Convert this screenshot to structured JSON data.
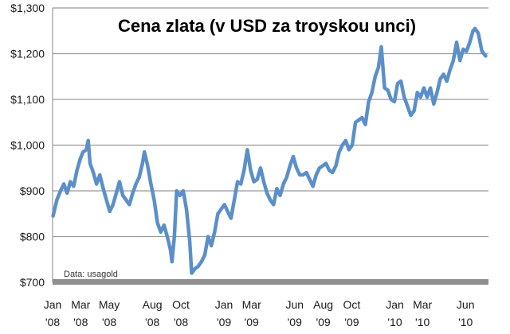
{
  "chart_data": {
    "type": "line",
    "title": "Cena zlata (v USD za troyskou unci)",
    "note": "Data: usagold",
    "xlabel": "",
    "ylabel": "",
    "ylim": [
      700,
      1300
    ],
    "xlim": [
      "2008-01-01",
      "2010-07-20"
    ],
    "yticks": [
      700,
      800,
      900,
      1000,
      1100,
      1200,
      1300
    ],
    "ytick_labels": [
      "$700",
      "$800",
      "$900",
      "$1,000",
      "$1,100",
      "$1,200",
      "$1,300"
    ],
    "xticks": [
      {
        "date": "2008-01-01",
        "line1": "Jan",
        "line2": "'08"
      },
      {
        "date": "2008-03-01",
        "line1": "Mar",
        "line2": "'08"
      },
      {
        "date": "2008-05-01",
        "line1": "May",
        "line2": "'08"
      },
      {
        "date": "2008-08-01",
        "line1": "Aug",
        "line2": "'08"
      },
      {
        "date": "2008-10-01",
        "line1": "Oct",
        "line2": "'08"
      },
      {
        "date": "2009-01-01",
        "line1": "Jan",
        "line2": "'09"
      },
      {
        "date": "2009-03-01",
        "line1": "Mar",
        "line2": "'09"
      },
      {
        "date": "2009-06-01",
        "line1": "Jun",
        "line2": "'09"
      },
      {
        "date": "2009-08-01",
        "line1": "Aug",
        "line2": "'09"
      },
      {
        "date": "2009-10-01",
        "line1": "Oct",
        "line2": "'09"
      },
      {
        "date": "2010-01-01",
        "line1": "Jan",
        "line2": "'10"
      },
      {
        "date": "2010-03-01",
        "line1": "Mar",
        "line2": "'10"
      },
      {
        "date": "2010-06-01",
        "line1": "Jun",
        "line2": "'10"
      }
    ],
    "grid": true,
    "series": [
      {
        "color": "#5b8fc9",
        "points": [
          [
            "2008-01-02",
            845
          ],
          [
            "2008-01-10",
            880
          ],
          [
            "2008-01-18",
            900
          ],
          [
            "2008-01-25",
            915
          ],
          [
            "2008-02-01",
            895
          ],
          [
            "2008-02-08",
            920
          ],
          [
            "2008-02-15",
            910
          ],
          [
            "2008-02-22",
            945
          ],
          [
            "2008-02-29",
            970
          ],
          [
            "2008-03-06",
            985
          ],
          [
            "2008-03-13",
            990
          ],
          [
            "2008-03-17",
            1010
          ],
          [
            "2008-03-21",
            960
          ],
          [
            "2008-03-28",
            940
          ],
          [
            "2008-04-04",
            915
          ],
          [
            "2008-04-11",
            935
          ],
          [
            "2008-04-18",
            905
          ],
          [
            "2008-04-25",
            880
          ],
          [
            "2008-05-02",
            855
          ],
          [
            "2008-05-09",
            870
          ],
          [
            "2008-05-16",
            895
          ],
          [
            "2008-05-23",
            920
          ],
          [
            "2008-05-30",
            890
          ],
          [
            "2008-06-06",
            880
          ],
          [
            "2008-06-13",
            870
          ],
          [
            "2008-06-20",
            895
          ],
          [
            "2008-06-27",
            915
          ],
          [
            "2008-07-04",
            930
          ],
          [
            "2008-07-11",
            960
          ],
          [
            "2008-07-15",
            985
          ],
          [
            "2008-07-22",
            955
          ],
          [
            "2008-07-29",
            915
          ],
          [
            "2008-08-05",
            880
          ],
          [
            "2008-08-12",
            830
          ],
          [
            "2008-08-19",
            810
          ],
          [
            "2008-08-26",
            825
          ],
          [
            "2008-09-02",
            800
          ],
          [
            "2008-09-09",
            770
          ],
          [
            "2008-09-12",
            745
          ],
          [
            "2008-09-17",
            800
          ],
          [
            "2008-09-22",
            900
          ],
          [
            "2008-09-29",
            890
          ],
          [
            "2008-10-06",
            900
          ],
          [
            "2008-10-13",
            860
          ],
          [
            "2008-10-20",
            790
          ],
          [
            "2008-10-24",
            720
          ],
          [
            "2008-10-31",
            730
          ],
          [
            "2008-11-07",
            735
          ],
          [
            "2008-11-14",
            745
          ],
          [
            "2008-11-21",
            760
          ],
          [
            "2008-11-28",
            800
          ],
          [
            "2008-12-05",
            780
          ],
          [
            "2008-12-12",
            810
          ],
          [
            "2008-12-19",
            850
          ],
          [
            "2008-12-26",
            860
          ],
          [
            "2009-01-02",
            870
          ],
          [
            "2009-01-09",
            855
          ],
          [
            "2009-01-16",
            840
          ],
          [
            "2009-01-23",
            880
          ],
          [
            "2009-01-30",
            920
          ],
          [
            "2009-02-06",
            915
          ],
          [
            "2009-02-13",
            945
          ],
          [
            "2009-02-20",
            990
          ],
          [
            "2009-02-27",
            945
          ],
          [
            "2009-03-06",
            920
          ],
          [
            "2009-03-13",
            925
          ],
          [
            "2009-03-20",
            950
          ],
          [
            "2009-03-27",
            920
          ],
          [
            "2009-04-03",
            895
          ],
          [
            "2009-04-10",
            880
          ],
          [
            "2009-04-17",
            870
          ],
          [
            "2009-04-24",
            905
          ],
          [
            "2009-05-01",
            890
          ],
          [
            "2009-05-08",
            915
          ],
          [
            "2009-05-15",
            930
          ],
          [
            "2009-05-22",
            955
          ],
          [
            "2009-05-29",
            975
          ],
          [
            "2009-06-05",
            950
          ],
          [
            "2009-06-12",
            935
          ],
          [
            "2009-06-19",
            935
          ],
          [
            "2009-06-26",
            940
          ],
          [
            "2009-07-03",
            925
          ],
          [
            "2009-07-10",
            910
          ],
          [
            "2009-07-17",
            935
          ],
          [
            "2009-07-24",
            950
          ],
          [
            "2009-07-31",
            955
          ],
          [
            "2009-08-07",
            960
          ],
          [
            "2009-08-14",
            945
          ],
          [
            "2009-08-21",
            940
          ],
          [
            "2009-08-28",
            955
          ],
          [
            "2009-09-04",
            985
          ],
          [
            "2009-09-11",
            1000
          ],
          [
            "2009-09-18",
            1010
          ],
          [
            "2009-09-25",
            990
          ],
          [
            "2009-10-02",
            1000
          ],
          [
            "2009-10-09",
            1050
          ],
          [
            "2009-10-16",
            1055
          ],
          [
            "2009-10-23",
            1060
          ],
          [
            "2009-10-30",
            1045
          ],
          [
            "2009-11-06",
            1095
          ],
          [
            "2009-11-13",
            1115
          ],
          [
            "2009-11-20",
            1150
          ],
          [
            "2009-11-27",
            1170
          ],
          [
            "2009-12-03",
            1215
          ],
          [
            "2009-12-10",
            1125
          ],
          [
            "2009-12-17",
            1120
          ],
          [
            "2009-12-24",
            1100
          ],
          [
            "2009-12-31",
            1095
          ],
          [
            "2010-01-07",
            1135
          ],
          [
            "2010-01-14",
            1140
          ],
          [
            "2010-01-21",
            1105
          ],
          [
            "2010-01-28",
            1085
          ],
          [
            "2010-02-04",
            1065
          ],
          [
            "2010-02-11",
            1075
          ],
          [
            "2010-02-18",
            1115
          ],
          [
            "2010-02-25",
            1105
          ],
          [
            "2010-03-04",
            1125
          ],
          [
            "2010-03-11",
            1105
          ],
          [
            "2010-03-18",
            1125
          ],
          [
            "2010-03-25",
            1090
          ],
          [
            "2010-04-01",
            1115
          ],
          [
            "2010-04-08",
            1145
          ],
          [
            "2010-04-15",
            1155
          ],
          [
            "2010-04-22",
            1140
          ],
          [
            "2010-04-29",
            1165
          ],
          [
            "2010-05-06",
            1185
          ],
          [
            "2010-05-13",
            1225
          ],
          [
            "2010-05-20",
            1185
          ],
          [
            "2010-05-27",
            1210
          ],
          [
            "2010-06-03",
            1205
          ],
          [
            "2010-06-10",
            1225
          ],
          [
            "2010-06-17",
            1250
          ],
          [
            "2010-06-21",
            1255
          ],
          [
            "2010-06-28",
            1245
          ],
          [
            "2010-07-06",
            1205
          ],
          [
            "2010-07-14",
            1195
          ]
        ]
      }
    ]
  }
}
